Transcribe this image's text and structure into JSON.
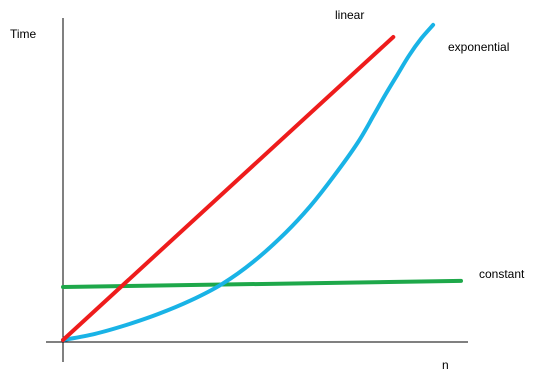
{
  "chart_data": {
    "type": "line",
    "xlabel": "n",
    "ylabel": "Time",
    "grid": false,
    "xlim": [
      0,
      100
    ],
    "ylim": [
      0,
      100
    ],
    "series": [
      {
        "name": "linear",
        "color": "#ee1c1c",
        "x": [
          0,
          83
        ],
        "y": [
          0,
          100
        ]
      },
      {
        "name": "exponential",
        "color": "#19b3e6",
        "x": [
          0,
          8,
          16,
          24,
          32,
          40,
          48,
          56,
          62,
          68,
          74,
          78,
          81,
          84,
          87,
          90,
          93
        ],
        "y": [
          0,
          2,
          5,
          8.6,
          13,
          18.5,
          26,
          35.5,
          44,
          54,
          65,
          74,
          81,
          87.5,
          94,
          99.5,
          104
        ]
      },
      {
        "name": "constant",
        "color": "#1ea84a",
        "x": [
          0,
          100
        ],
        "y": [
          17.5,
          19.5
        ]
      }
    ]
  }
}
